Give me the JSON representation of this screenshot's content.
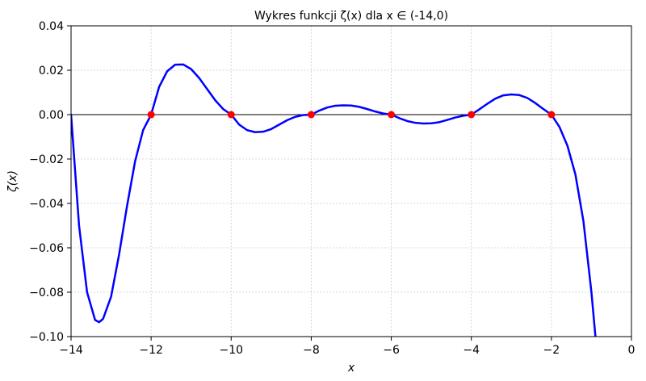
{
  "chart_data": {
    "type": "line",
    "title": "Wykres funkcji ζ(x) dla x ∈ (-14,0)",
    "xlabel": "x",
    "ylabel": "ζ(x)",
    "xlim": [
      -14,
      0
    ],
    "ylim": [
      -0.1,
      0.04
    ],
    "grid": true,
    "x_ticks": [
      -14,
      -12,
      -10,
      -8,
      -6,
      -4,
      -2,
      0
    ],
    "x_tick_labels": [
      "−14",
      "−12",
      "−10",
      "−8",
      "−6",
      "−4",
      "−2",
      "0"
    ],
    "y_ticks": [
      0.04,
      0.02,
      0.0,
      -0.02,
      -0.04,
      -0.06,
      -0.08,
      -0.1
    ],
    "y_tick_labels": [
      "0.04",
      "0.02",
      "0.00",
      "−0.02",
      "−0.04",
      "−0.06",
      "−0.08",
      "−0.10"
    ],
    "series": [
      {
        "color": "#0000ff",
        "x": [
          -14.0,
          -13.8,
          -13.6,
          -13.4,
          -13.3,
          -13.2,
          -13.0,
          -12.8,
          -12.6,
          -12.4,
          -12.2,
          -12.0,
          -11.8,
          -11.6,
          -11.4,
          -11.2,
          -11.0,
          -10.8,
          -10.6,
          -10.4,
          -10.2,
          -10.0,
          -9.8,
          -9.6,
          -9.4,
          -9.2,
          -9.0,
          -8.8,
          -8.6,
          -8.4,
          -8.2,
          -8.0,
          -7.8,
          -7.6,
          -7.4,
          -7.2,
          -7.0,
          -6.8,
          -6.6,
          -6.4,
          -6.2,
          -6.0,
          -5.8,
          -5.6,
          -5.4,
          -5.2,
          -5.0,
          -4.8,
          -4.6,
          -4.4,
          -4.2,
          -4.0,
          -3.8,
          -3.6,
          -3.4,
          -3.2,
          -3.0,
          -2.8,
          -2.6,
          -2.4,
          -2.2,
          -2.0,
          -1.8,
          -1.6,
          -1.4,
          -1.2,
          -1.0,
          -0.9
        ],
        "y": [
          0.0,
          -0.05,
          -0.08,
          -0.0925,
          -0.0935,
          -0.092,
          -0.082,
          -0.063,
          -0.041,
          -0.021,
          -0.007,
          0.0,
          0.0125,
          0.0195,
          0.0225,
          0.0226,
          0.0205,
          0.0165,
          0.0115,
          0.0065,
          0.0025,
          0.0,
          -0.0045,
          -0.007,
          -0.0079,
          -0.0077,
          -0.0065,
          -0.0045,
          -0.0025,
          -0.001,
          -0.0002,
          0.0,
          0.0018,
          0.0032,
          0.004,
          0.0042,
          0.0041,
          0.0035,
          0.0025,
          0.0014,
          0.0005,
          0.0,
          -0.0016,
          -0.0029,
          -0.0037,
          -0.004,
          -0.0039,
          -0.0034,
          -0.0024,
          -0.0013,
          -0.0005,
          0.0,
          0.0024,
          0.0049,
          0.0072,
          0.0087,
          0.0091,
          0.0088,
          0.0075,
          0.0052,
          0.0025,
          0.0,
          -0.0055,
          -0.014,
          -0.027,
          -0.048,
          -0.08,
          -0.1
        ]
      }
    ],
    "markers": {
      "color": "#ff0000",
      "x": [
        -12,
        -10,
        -8,
        -6,
        -4,
        -2
      ],
      "y": [
        0,
        0,
        0,
        0,
        0,
        0
      ]
    }
  }
}
